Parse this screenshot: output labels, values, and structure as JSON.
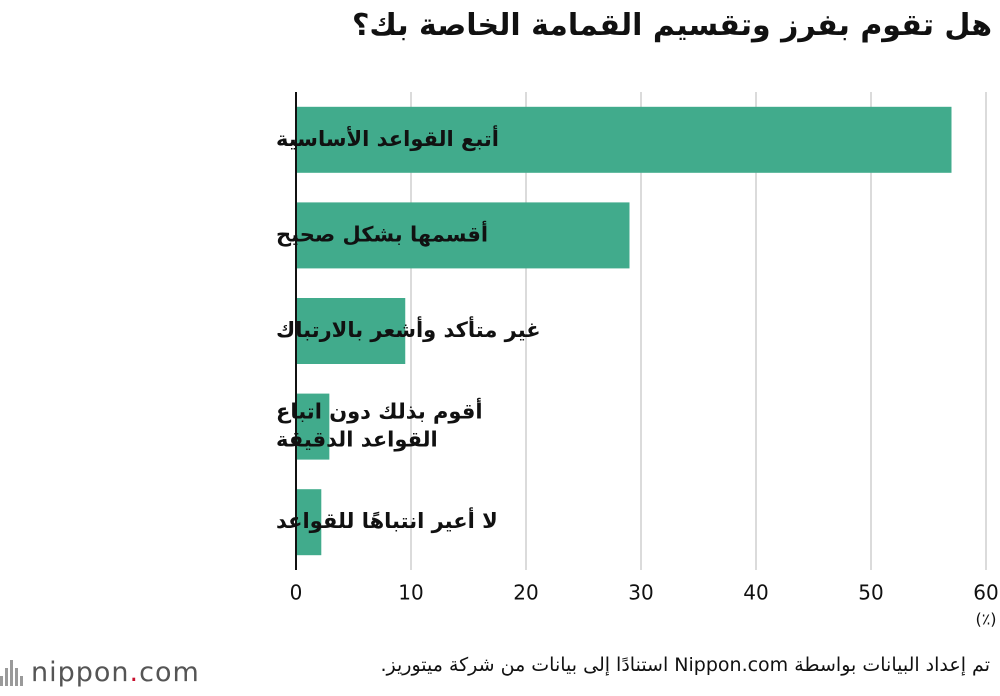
{
  "page": {
    "title": "هل تقوم بفرز وتقسيم القمامة الخاصة بك؟",
    "footer_note": "تم إعداد البيانات بواسطة Nippon.com استنادًا إلى بيانات من شركة ميتوريز.",
    "brand": {
      "name": "nippon",
      "dot": ".",
      "suffix": "com",
      "mark_icon": "nippon-sound-bars-icon"
    }
  },
  "chart_data": {
    "type": "bar",
    "orientation": "horizontal",
    "title": "هل تقوم بفرز وتقسيم القمامة الخاصة بك؟",
    "categories": [
      [
        "أتبع القواعد الأساسية"
      ],
      [
        "أقسمها بشكل صحيح"
      ],
      [
        "غير متأكد وأشعر بالارتباك"
      ],
      [
        "أقوم بذلك دون اتباع",
        "القواعد الدقيقة"
      ],
      [
        "لا أعير انتباهًا للقواعد"
      ]
    ],
    "values": [
      57,
      29,
      9.5,
      2.9,
      2.2
    ],
    "xlim": [
      0,
      60
    ],
    "xticks": [
      "0",
      "10",
      "20",
      "30",
      "40",
      "50",
      "60"
    ],
    "unit_label": "(٪)",
    "grid": true,
    "bar_color": "#41ab8c",
    "grid_color": "#cfcfcf",
    "axis_color": "#111111"
  }
}
